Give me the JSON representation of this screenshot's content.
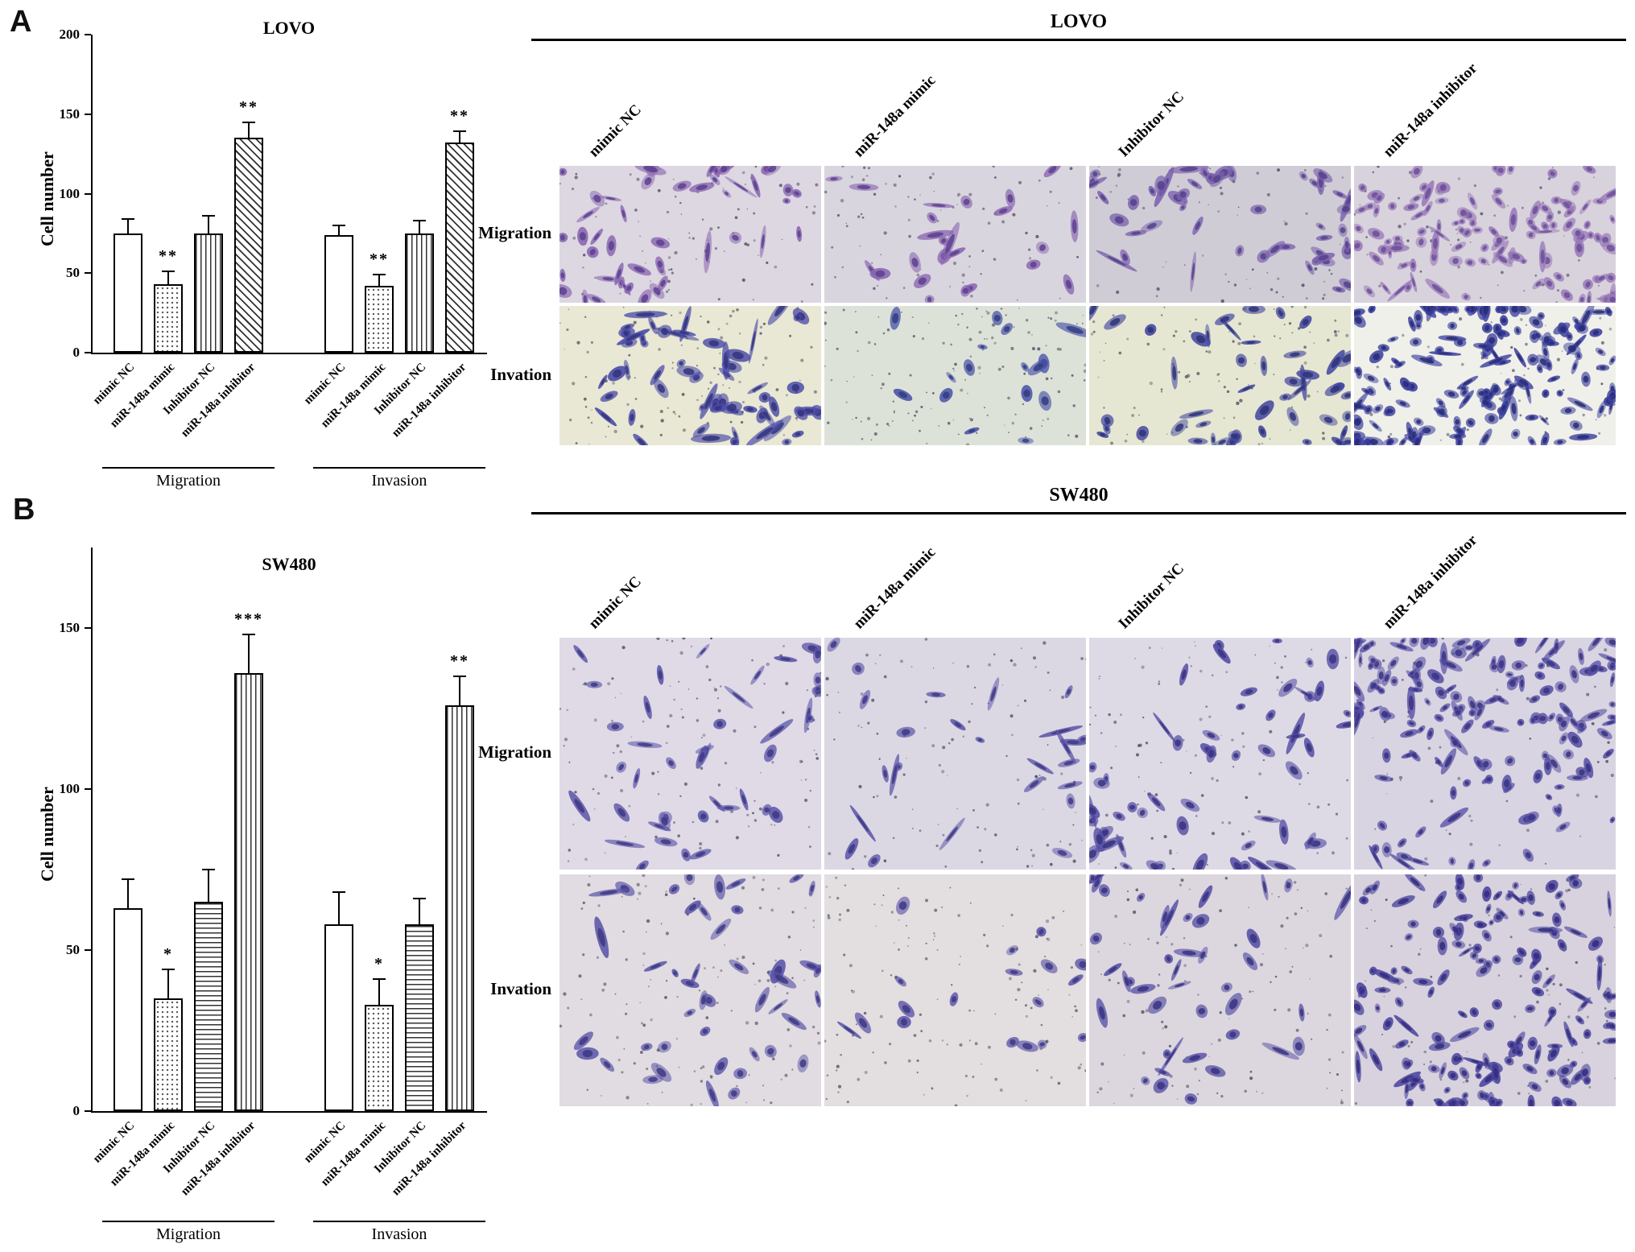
{
  "panels": {
    "a": "A",
    "b": "B"
  },
  "chart_data": [
    {
      "type": "bar",
      "panel": "A",
      "title": "LOVO",
      "ylabel": "Cell number",
      "ylim": [
        0,
        200
      ],
      "yticks": [
        0,
        50,
        100,
        150,
        200
      ],
      "categories": [
        "mimic NC",
        "miR-148a mimic",
        "Inhibitor NC",
        "miR-148a inhibitor"
      ],
      "bar_patterns": [
        "plain",
        "dots",
        "vlines",
        "diag"
      ],
      "groups": [
        {
          "label": "Migration",
          "values": [
            75,
            43,
            75,
            135
          ],
          "errors": [
            9,
            8,
            11,
            10
          ],
          "sig": [
            "",
            "**",
            "",
            "**"
          ]
        },
        {
          "label": "Invasion",
          "values": [
            74,
            42,
            75,
            132
          ],
          "errors": [
            6,
            7,
            8,
            7
          ],
          "sig": [
            "",
            "**",
            "",
            "**"
          ]
        }
      ]
    },
    {
      "type": "bar",
      "panel": "B",
      "title": "SW480",
      "ylabel": "Cell number",
      "ylim": [
        0,
        175
      ],
      "yticks": [
        0,
        50,
        100,
        150
      ],
      "categories": [
        "mimic NC",
        "miR-148a mimic",
        "Inhibitor NC",
        "miR-148a inhibitor"
      ],
      "bar_patterns": [
        "plain",
        "dots",
        "hlines",
        "vlines"
      ],
      "groups": [
        {
          "label": "Migration",
          "values": [
            63,
            35,
            65,
            136
          ],
          "errors": [
            9,
            9,
            10,
            12
          ],
          "sig": [
            "",
            "*",
            "",
            "***"
          ]
        },
        {
          "label": "Invasion",
          "values": [
            58,
            33,
            58,
            126
          ],
          "errors": [
            10,
            8,
            8,
            9
          ],
          "sig": [
            "",
            "*",
            "",
            "**"
          ]
        }
      ]
    }
  ],
  "micrographs": [
    {
      "title": "LOVO",
      "column_labels": [
        "mimic NC",
        "miR-148a mimic",
        "Inhibitor NC",
        "miR-148a inhibitor"
      ],
      "rows": [
        {
          "label": "Migration",
          "tiles": [
            {
              "bg": "#dcd7e1",
              "cell": "#8a67b0",
              "nucleus": "#5c3f8f",
              "cells": 48,
              "debris": 90
            },
            {
              "bg": "#d9d5df",
              "cell": "#8a67b0",
              "nucleus": "#5c3f8f",
              "cells": 24,
              "debris": 80
            },
            {
              "bg": "#cfccd6",
              "cell": "#7d63ad",
              "nucleus": "#53418c",
              "cells": 50,
              "debris": 70
            },
            {
              "bg": "#d8d2dc",
              "cell": "#9a7ab8",
              "nucleus": "#6a4f9a",
              "cells": 125,
              "debris": 60
            }
          ]
        },
        {
          "label": "Invation",
          "tiles": [
            {
              "bg": "#e8e8d4",
              "cell": "#4a4aa6",
              "nucleus": "#32327e",
              "cells": 60,
              "debris": 110
            },
            {
              "bg": "#dde2d8",
              "cell": "#4a55a8",
              "nucleus": "#323c80",
              "cells": 16,
              "debris": 140
            },
            {
              "bg": "#e6e7d2",
              "cell": "#44489f",
              "nucleus": "#2e3278",
              "cells": 48,
              "debris": 100
            },
            {
              "bg": "#f0f0ea",
              "cell": "#3b3f9e",
              "nucleus": "#272b77",
              "cells": 175,
              "debris": 50
            }
          ]
        }
      ]
    },
    {
      "title": "SW480",
      "column_labels": [
        "mimic NC",
        "miR-148a mimic",
        "Inhibitor NC",
        "miR-148a inhibitor"
      ],
      "rows": [
        {
          "label": "Migration",
          "tiles": [
            {
              "bg": "#dfdae6",
              "cell": "#5b54a8",
              "nucleus": "#3d3884",
              "cells": 42,
              "debris": 120
            },
            {
              "bg": "#dcd8e3",
              "cell": "#5b54a8",
              "nucleus": "#3d3884",
              "cells": 26,
              "debris": 110
            },
            {
              "bg": "#dedae5",
              "cell": "#554ea5",
              "nucleus": "#383280",
              "cells": 58,
              "debris": 100
            },
            {
              "bg": "#d9d4e1",
              "cell": "#554ea5",
              "nucleus": "#383280",
              "cells": 165,
              "debris": 60
            }
          ]
        },
        {
          "label": "Invation",
          "tiles": [
            {
              "bg": "#e1dce1",
              "cell": "#5b54a8",
              "nucleus": "#3d3884",
              "cells": 44,
              "debris": 130
            },
            {
              "bg": "#e3dedf",
              "cell": "#5b54a8",
              "nucleus": "#3d3884",
              "cells": 18,
              "debris": 130
            },
            {
              "bg": "#dcd7de",
              "cell": "#554ea5",
              "nucleus": "#383280",
              "cells": 42,
              "debris": 110
            },
            {
              "bg": "#d7d2dd",
              "cell": "#4c459e",
              "nucleus": "#322c7c",
              "cells": 165,
              "debris": 70
            }
          ]
        }
      ]
    }
  ]
}
